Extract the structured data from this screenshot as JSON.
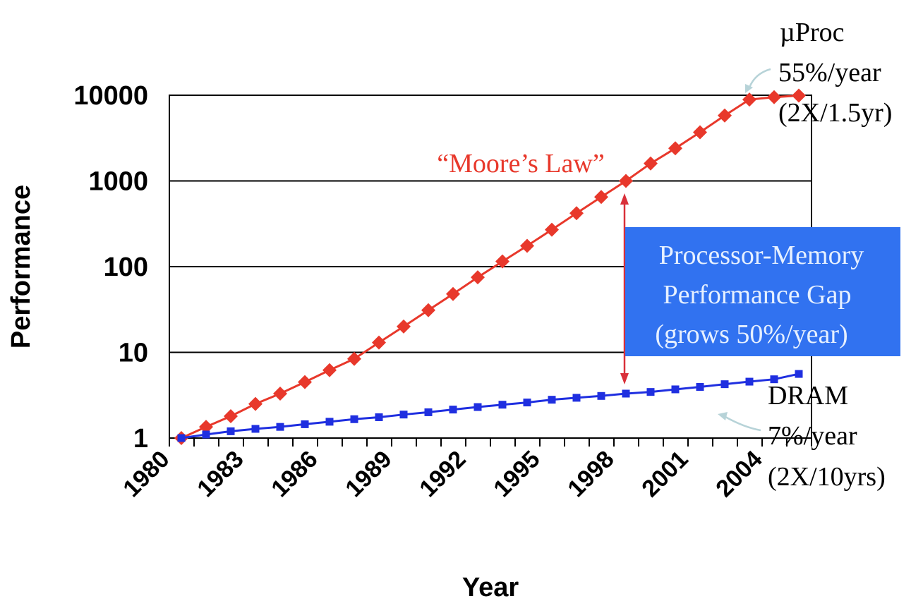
{
  "chart_data": {
    "type": "line",
    "title": "",
    "xlabel": "Year",
    "ylabel": "Performance",
    "y_scale": "log",
    "ylim": [
      1,
      10000
    ],
    "xlim": [
      1980,
      2006
    ],
    "y_ticks": [
      "1",
      "10",
      "100",
      "1000",
      "10000"
    ],
    "x_ticks": [
      "1980",
      "1983",
      "1986",
      "1989",
      "1992",
      "1995",
      "1998",
      "2001",
      "2004"
    ],
    "grid": "horizontal",
    "series": [
      {
        "name": "µProc",
        "color": "#e8382b",
        "marker": "diamond",
        "x": [
          1980,
          1981,
          1982,
          1983,
          1984,
          1985,
          1986,
          1987,
          1988,
          1989,
          1990,
          1991,
          1992,
          1993,
          1994,
          1995,
          1996,
          1997,
          1998,
          1999,
          2000,
          2001,
          2002,
          2003,
          2004,
          2005
        ],
        "values": [
          1,
          1.35,
          1.8,
          2.5,
          3.3,
          4.5,
          6.2,
          8.4,
          13,
          20,
          31,
          48,
          75,
          115,
          175,
          270,
          420,
          650,
          1000,
          1600,
          2400,
          3700,
          5800,
          8900,
          9500,
          9900
        ]
      },
      {
        "name": "DRAM",
        "color": "#1f2fe0",
        "marker": "square",
        "x": [
          1980,
          1981,
          1982,
          1983,
          1984,
          1985,
          1986,
          1987,
          1988,
          1989,
          1990,
          1991,
          1992,
          1993,
          1994,
          1995,
          1996,
          1997,
          1998,
          1999,
          2000,
          2001,
          2002,
          2003,
          2004,
          2005
        ],
        "values": [
          1,
          1.1,
          1.2,
          1.28,
          1.35,
          1.45,
          1.55,
          1.66,
          1.75,
          1.88,
          2.0,
          2.15,
          2.3,
          2.45,
          2.6,
          2.8,
          2.95,
          3.1,
          3.3,
          3.45,
          3.7,
          3.95,
          4.25,
          4.55,
          4.85,
          5.6
        ]
      }
    ],
    "annotations": {
      "moores_law": "“Moore’s Law”",
      "uproc": [
        "µProc",
        "55%/year",
        "(2X/1.5yr)"
      ],
      "dram": [
        "DRAM",
        "7%/year",
        "(2X/10yrs)"
      ],
      "gap": [
        "Processor-Memory",
        "Performance Gap",
        "(grows 50%/year)"
      ]
    },
    "colors": {
      "gap_box": "#3172f0",
      "gap_text": "#e6f0ff",
      "gap_arrow": "#d9303a",
      "callout_arrow": "#b7d3d8"
    }
  }
}
